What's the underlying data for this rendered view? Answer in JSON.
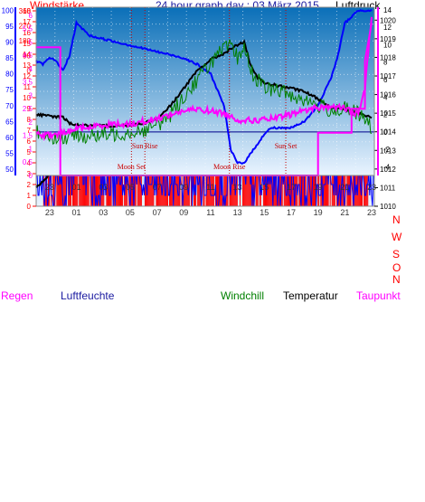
{
  "header": {
    "left": "Windstärke",
    "center": "24 hour graph day : 03 März 2015",
    "right": "Luftdruck"
  },
  "time_ticks": [
    "23",
    "01",
    "03",
    "05",
    "07",
    "09",
    "11",
    "13",
    "15",
    "17",
    "19",
    "21",
    "23"
  ],
  "compass_labels": [
    "N",
    "W",
    "S",
    "O",
    "N"
  ],
  "bottom_header": {
    "rain": "Regen",
    "humidity": "Luftfeuchte",
    "windchill": "Windchill",
    "temperature": "Temperatur",
    "dewpoint": "Taupunkt"
  },
  "annotations": {
    "sun_rise": "Sun Rise",
    "moon_set": "Moon Set",
    "sun_set": "Sun Set",
    "moon_rise": "Moon Rise"
  },
  "colors": {
    "wind_gust": "#ff0000",
    "wind_avg": "#0000ff",
    "pressure": "#000000",
    "direction": "#ff0000",
    "humidity": "#0000ff",
    "windchill": "#008000",
    "temperature": "#000000",
    "dewpoint": "#ff00ff",
    "rain": "#ff00ff",
    "gradient_top": "#0a6fb8",
    "gradient_bottom": "#eaf4ff"
  },
  "chart_data": [
    {
      "id": "wind_pressure",
      "type": "line",
      "x_ticks": [
        "23",
        "01",
        "03",
        "05",
        "07",
        "09",
        "11",
        "13",
        "15",
        "17",
        "19",
        "21",
        "23"
      ],
      "y_left_ticks": [
        "0",
        "1",
        "2",
        "3",
        "4",
        "5",
        "6",
        "7",
        "8",
        "9",
        "10",
        "11",
        "12",
        "13",
        "14",
        "15",
        "16",
        "17",
        "18"
      ],
      "ylim_left": [
        0,
        18
      ],
      "y_right_ticks": [
        "1010",
        "1011",
        "1012",
        "1013",
        "1014",
        "1015",
        "1016",
        "1017",
        "1018",
        "1019",
        "1020"
      ],
      "ylim_right": [
        1010,
        1020.5
      ],
      "series": [
        {
          "axis": "right",
          "x": [
            22,
            23,
            24,
            25,
            26,
            27,
            28,
            29,
            30,
            31,
            32,
            33,
            34,
            35,
            36,
            37,
            38,
            39,
            40,
            41,
            42,
            43,
            44,
            45,
            46,
            47
          ],
          "values": [
            1011.0,
            1011.7,
            1013.0,
            1014.8,
            1015.5,
            1016.0,
            1016.6,
            1017.0,
            1017.5,
            1018.0,
            1018.4,
            1018.7,
            1018.9,
            1019.0,
            1018.6,
            1017.8,
            1017.0,
            1016.0,
            1015.0,
            1014.6,
            1014.4,
            1014.6,
            1015.7,
            1016.0,
            1016.5,
            1016.7
          ]
        }
      ]
    },
    {
      "id": "wind_direction",
      "type": "line",
      "x_ticks": [
        "23",
        "01",
        "03",
        "05",
        "07",
        "09",
        "11",
        "13",
        "15",
        "17",
        "19",
        "21",
        "23"
      ],
      "y_ticks": [
        "0",
        "90",
        "180",
        "270",
        "360"
      ],
      "ylim": [
        0,
        360
      ]
    },
    {
      "id": "climate",
      "type": "line",
      "x_ticks": [
        "23",
        "01",
        "03",
        "05",
        "07",
        "09",
        "11",
        "13",
        "15",
        "17",
        "19",
        "21",
        "23"
      ],
      "y_left_humidity_ticks": [
        "50",
        "55",
        "60",
        "65",
        "70",
        "75",
        "80",
        "85",
        "90",
        "95",
        "100"
      ],
      "ylim_humidity": [
        48,
        101
      ],
      "y_left_rain_ticks": [
        "0",
        "0.5",
        "1",
        "1.5",
        "2",
        "2.5",
        "3",
        "3.5",
        "4",
        "4.5",
        "5",
        "5.5",
        "6"
      ],
      "ylim_rain": [
        0,
        6.3
      ],
      "y_right_temp_ticks": [
        "-4",
        "-2",
        "0",
        "2",
        "4",
        "6",
        "8",
        "10",
        "12",
        "14"
      ],
      "ylim_temp": [
        -5,
        14.3
      ],
      "series": [
        {
          "axis": "humidity",
          "x": [
            22,
            22.5,
            23,
            23.5,
            24,
            24.5,
            25,
            25.5,
            26,
            27,
            28,
            29,
            30,
            31,
            32,
            33,
            34,
            35,
            36,
            36.5,
            37,
            37.5,
            38,
            38.5,
            39,
            39.5,
            40,
            41,
            42,
            43,
            44,
            44.5,
            45,
            46,
            47
          ],
          "values": [
            84,
            83,
            85,
            84,
            81,
            86,
            96,
            94,
            92,
            91,
            90,
            89,
            88,
            87,
            86,
            85,
            83,
            80,
            70,
            56,
            52,
            52,
            55,
            58,
            61,
            63,
            63,
            63,
            65,
            70,
            79,
            86,
            96,
            100,
            100
          ]
        },
        {
          "axis": "temp",
          "x": [
            22,
            23,
            24,
            24.5,
            25,
            26,
            27,
            28,
            29,
            30,
            31,
            32,
            33,
            34,
            35,
            36,
            36.5,
            37,
            37.5,
            38,
            38.5,
            39,
            40,
            41,
            42,
            43,
            44,
            45,
            46,
            47
          ],
          "values": [
            2.0,
            1.8,
            1.7,
            1.0,
            0.8,
            0.7,
            0.7,
            0.7,
            0.8,
            1.0,
            1.5,
            3.0,
            5.0,
            7.0,
            8.3,
            9.0,
            9.5,
            10.0,
            10.3,
            7.5,
            6.2,
            5.6,
            5.3,
            5.0,
            4.6,
            3.8,
            2.8,
            2.6,
            2.2,
            1.6
          ]
        },
        {
          "axis": "temp",
          "x": [
            22,
            23,
            24,
            25,
            26,
            27,
            28,
            29,
            30,
            31,
            32,
            33,
            34,
            35,
            36,
            36.5,
            37,
            37.5,
            38,
            39,
            40,
            41,
            42,
            43,
            44,
            45,
            46,
            47
          ],
          "values": [
            0.0,
            -0.5,
            -0.8,
            -0.3,
            -0.5,
            -0.4,
            -0.2,
            0.0,
            0.2,
            0.7,
            2.0,
            4.0,
            6.0,
            8.0,
            9.5,
            9.8,
            8.5,
            9.8,
            7.0,
            5.0,
            4.8,
            4.2,
            3.7,
            3.0,
            2.5,
            2.6,
            2.1,
            0.5
          ]
        },
        {
          "axis": "temp",
          "x": [
            22,
            23,
            24,
            25,
            26,
            27,
            28,
            29,
            30,
            31,
            32,
            33,
            34,
            35,
            36,
            37,
            38,
            39,
            40,
            41,
            42,
            43,
            44,
            45,
            46,
            46.5,
            47
          ],
          "values": [
            -0.3,
            -0.4,
            -0.2,
            0.4,
            0.5,
            0.8,
            0.9,
            0.9,
            1.2,
            1.5,
            2.0,
            2.4,
            2.6,
            2.4,
            2.1,
            1.4,
            1.3,
            1.4,
            1.6,
            2.0,
            2.5,
            2.8,
            2.9,
            2.7,
            2.0,
            5.0,
            13.5
          ]
        },
        {
          "axis": "rain",
          "x": [
            22,
            23.8,
            23.8,
            43,
            43,
            45.5,
            45.5,
            46.5,
            46.5,
            47
          ],
          "values": [
            4.8,
            4.8,
            0,
            0,
            1.6,
            1.6,
            2.5,
            2.5,
            4.3,
            5.7
          ]
        }
      ]
    }
  ]
}
